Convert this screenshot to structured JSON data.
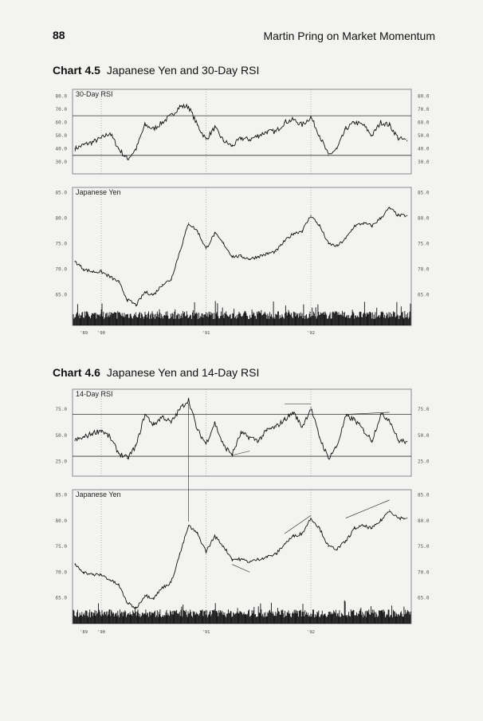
{
  "page": {
    "number": "88",
    "running_head": "Martin Pring on Market Momentum"
  },
  "captions": [
    {
      "label": "Chart 4.5",
      "title": "Japanese Yen and 30-Day RSI"
    },
    {
      "label": "Chart 4.6",
      "title": "Japanese Yen and 14-Day RSI"
    }
  ],
  "colors": {
    "line": "#111111",
    "frame": "#8a8a8a",
    "paper": "#f3f3f1"
  },
  "chart_data": [
    {
      "id": "chart-4-5",
      "type": "line",
      "title": "Chart 4.5 Japanese Yen and 30-Day RSI",
      "x_tick_labels": [
        "'89",
        "'90",
        "'91",
        "'92"
      ],
      "x": [
        "1989-10",
        "1989-11",
        "1989-12",
        "1990-01",
        "1990-02",
        "1990-03",
        "1990-04",
        "1990-05",
        "1990-06",
        "1990-07",
        "1990-08",
        "1990-09",
        "1990-10",
        "1990-11",
        "1990-12",
        "1991-01",
        "1991-02",
        "1991-03",
        "1991-04",
        "1991-05",
        "1991-06",
        "1991-07",
        "1991-08",
        "1991-09",
        "1991-10",
        "1991-11",
        "1991-12",
        "1992-01",
        "1992-02",
        "1992-03",
        "1992-04",
        "1992-05",
        "1992-06",
        "1992-07",
        "1992-08",
        "1992-09",
        "1992-10",
        "1992-11",
        "1992-12"
      ],
      "panels": [
        {
          "name": "30-Day RSI",
          "ylim": [
            21,
            85
          ],
          "ticks": [
            "80.0",
            "70.0",
            "60.0",
            "50.0",
            "40.0",
            "30.0"
          ],
          "tick_values": [
            80,
            70,
            60,
            50,
            40,
            30
          ],
          "reference_lines": [
            65,
            35
          ],
          "values": [
            40,
            43,
            45,
            48,
            52,
            40,
            32,
            40,
            58,
            55,
            60,
            65,
            72,
            72,
            58,
            47,
            56,
            46,
            42,
            48,
            47,
            50,
            53,
            53,
            60,
            62,
            58,
            64,
            50,
            35,
            40,
            55,
            60,
            58,
            50,
            60,
            58,
            48,
            46
          ]
        },
        {
          "name": "Japanese Yen",
          "ylim": [
            59,
            86
          ],
          "ticks": [
            "85.0",
            "80.0",
            "75.0",
            "70.0",
            "65.0"
          ],
          "tick_values": [
            85,
            80,
            75,
            70,
            65
          ],
          "volume": true,
          "values": [
            71.5,
            70,
            69.5,
            69.5,
            68.5,
            67.5,
            64,
            63,
            65.5,
            65,
            67,
            68,
            73.5,
            79,
            77.5,
            74,
            77,
            75,
            72.5,
            72.5,
            72,
            72.5,
            73,
            73.5,
            75.5,
            77,
            77.5,
            80.5,
            78.5,
            75,
            74.5,
            76,
            78.5,
            79,
            78.5,
            80,
            82,
            80.5,
            80.5
          ]
        }
      ]
    },
    {
      "id": "chart-4-6",
      "type": "line",
      "title": "Chart 4.6 Japanese Yen and 14-Day RSI",
      "x_tick_labels": [
        "'89",
        "'90",
        "'91",
        "'92"
      ],
      "x": [
        "1989-10",
        "1989-11",
        "1989-12",
        "1990-01",
        "1990-02",
        "1990-03",
        "1990-04",
        "1990-05",
        "1990-06",
        "1990-07",
        "1990-08",
        "1990-09",
        "1990-10",
        "1990-11",
        "1990-12",
        "1991-01",
        "1991-02",
        "1991-03",
        "1991-04",
        "1991-05",
        "1991-06",
        "1991-07",
        "1991-08",
        "1991-09",
        "1991-10",
        "1991-11",
        "1991-12",
        "1992-01",
        "1992-02",
        "1992-03",
        "1992-04",
        "1992-05",
        "1992-06",
        "1992-07",
        "1992-08",
        "1992-09",
        "1992-10",
        "1992-11",
        "1992-12"
      ],
      "panels": [
        {
          "name": "14-Day RSI",
          "ylim": [
            11,
            94
          ],
          "ticks": [
            "75.0",
            "50.0",
            "25.0"
          ],
          "tick_values": [
            75,
            50,
            25
          ],
          "reference_lines": [
            70,
            30
          ],
          "values": [
            45,
            48,
            52,
            55,
            48,
            33,
            28,
            40,
            70,
            60,
            68,
            62,
            75,
            84,
            55,
            42,
            62,
            40,
            32,
            52,
            48,
            45,
            55,
            58,
            65,
            72,
            58,
            76,
            48,
            28,
            40,
            68,
            65,
            55,
            45,
            70,
            65,
            45,
            44
          ],
          "annotations": [
            [
              [
                "1991-04",
                31
              ],
              [
                "1991-06",
                35
              ]
            ],
            [
              [
                "1991-10",
                80
              ],
              [
                "1992-01",
                80
              ]
            ],
            [
              [
                "1992-05",
                70
              ],
              [
                "1992-10",
                72
              ]
            ]
          ]
        },
        {
          "name": "Japanese Yen",
          "ylim": [
            60,
            86
          ],
          "ticks": [
            "85.0",
            "80.0",
            "75.0",
            "70.0",
            "65.0"
          ],
          "tick_values": [
            85,
            80,
            75,
            70,
            65
          ],
          "volume": true,
          "values": [
            71.5,
            70,
            69.5,
            69.5,
            68.5,
            67.5,
            64,
            63,
            65.5,
            65,
            67,
            68,
            73.5,
            79,
            77.5,
            74,
            77,
            75,
            72.5,
            72.5,
            72,
            72.5,
            73,
            73.5,
            75.5,
            77,
            77.5,
            80.5,
            78.5,
            75,
            74.5,
            76,
            78.5,
            79,
            78.5,
            80,
            82,
            80.5,
            80.5
          ],
          "annotations": [
            [
              [
                "1991-04",
                71.5
              ],
              [
                "1991-06",
                70
              ]
            ],
            [
              [
                "1991-10",
                77.5
              ],
              [
                "1992-01",
                81
              ]
            ],
            [
              [
                "1992-05",
                80.5
              ],
              [
                "1992-10",
                84
              ]
            ]
          ],
          "cross_panel_marker": "1990-11"
        }
      ]
    }
  ]
}
